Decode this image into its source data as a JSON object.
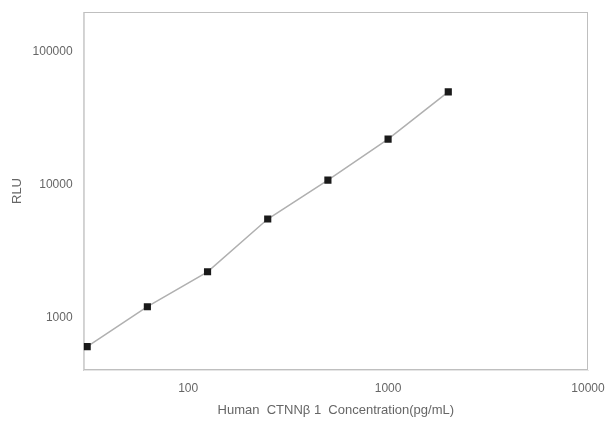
{
  "chart_data": {
    "type": "line",
    "x": [
      31.25,
      62.5,
      125,
      250,
      500,
      1000,
      2000
    ],
    "values": [
      600,
      1200,
      2200,
      5500,
      10800,
      22000,
      50000
    ],
    "color": "#b0b0b0",
    "colors": [
      "#1a1a1a",
      "#1a1a1a",
      "#1a1a1a",
      "#1a1a1a",
      "#1a1a1a",
      "#1a1a1a",
      "#1a1a1a"
    ],
    "marker": "square",
    "xlabel": "Human  CTNNβ 1  Concentration(pg/mL)",
    "ylabel": "RLU",
    "log": true,
    "xlim": [
      30,
      10000
    ],
    "ylim": [
      400,
      200000
    ],
    "xticks": [
      100,
      1000,
      10000
    ],
    "yticks": [
      1000,
      10000,
      100000
    ],
    "grid": false
  }
}
